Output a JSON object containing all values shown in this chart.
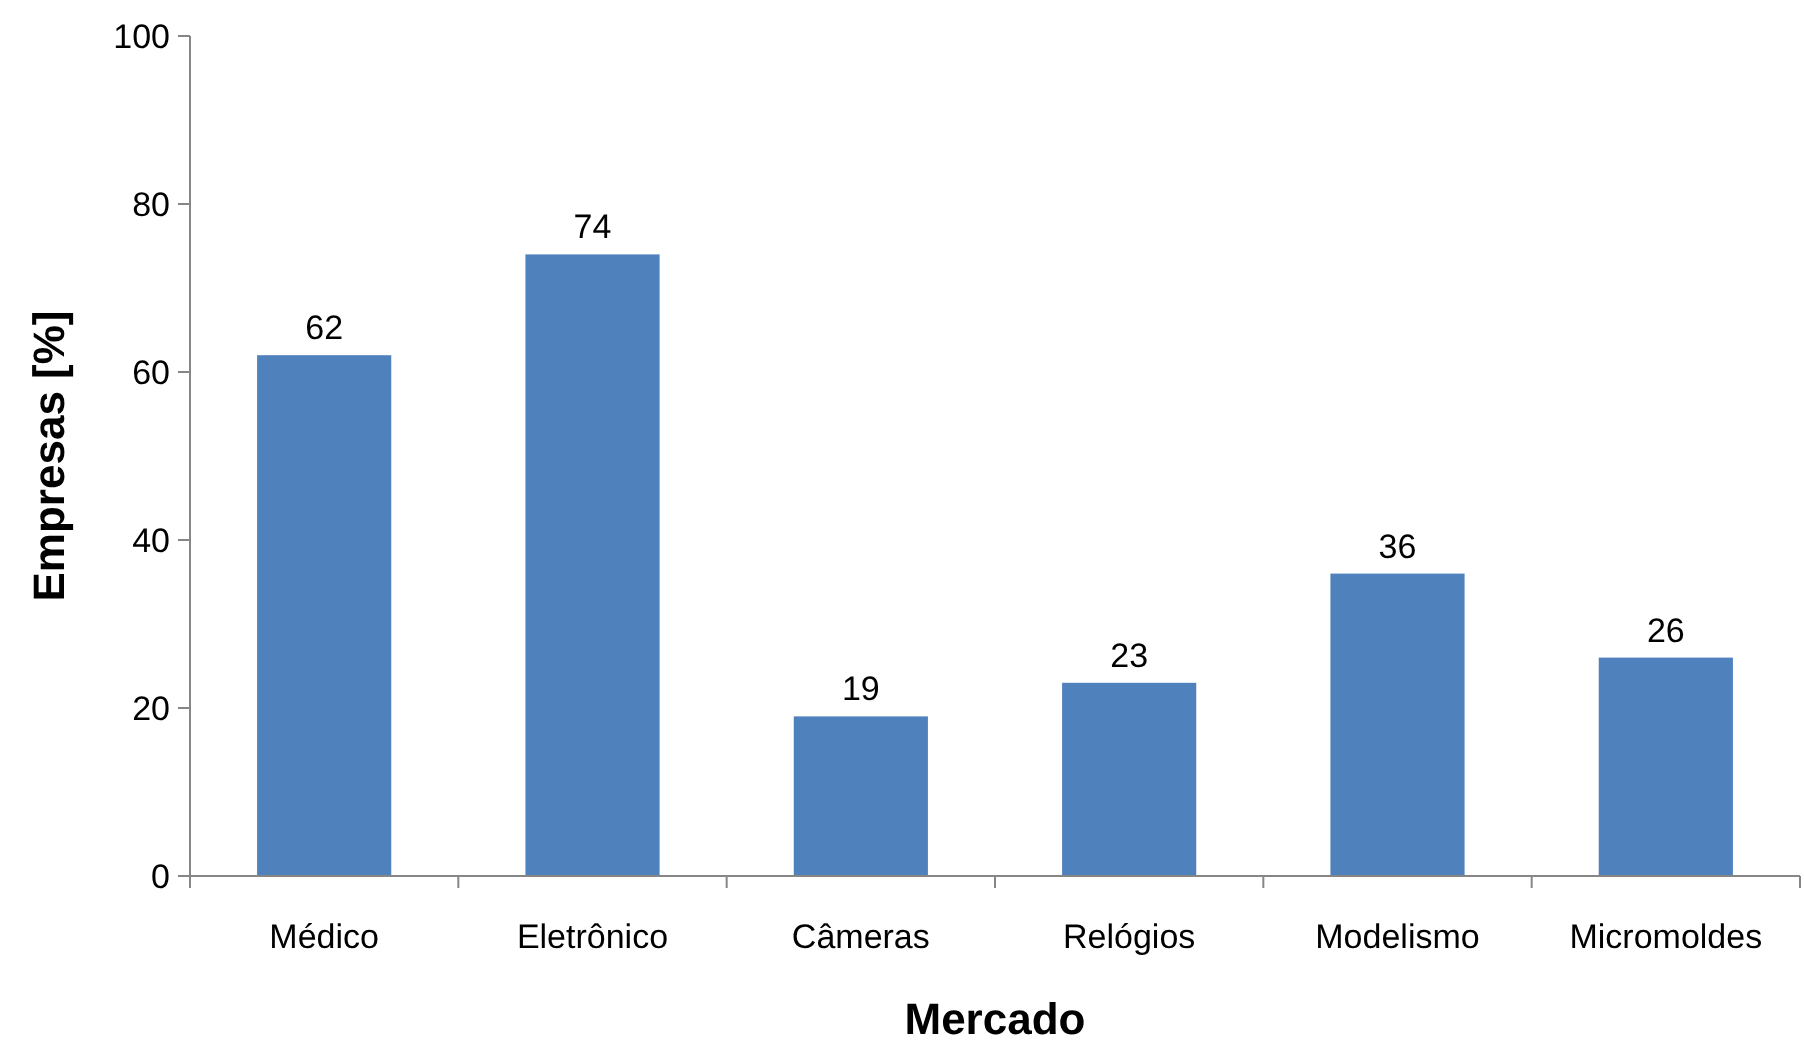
{
  "chart_data": {
    "type": "bar",
    "xlabel": "Mercado",
    "ylabel": "Empresas [%]",
    "categories": [
      "Médico",
      "Eletrônico",
      "Câmeras",
      "Relógios",
      "Modelismo",
      "Micromoldes"
    ],
    "values": [
      62,
      74,
      19,
      23,
      36,
      26
    ],
    "color": "#4f81bd",
    "ylim": [
      0,
      100
    ],
    "yticks": [
      0,
      20,
      40,
      60,
      80,
      100
    ],
    "grid": false,
    "data_labels": true
  }
}
